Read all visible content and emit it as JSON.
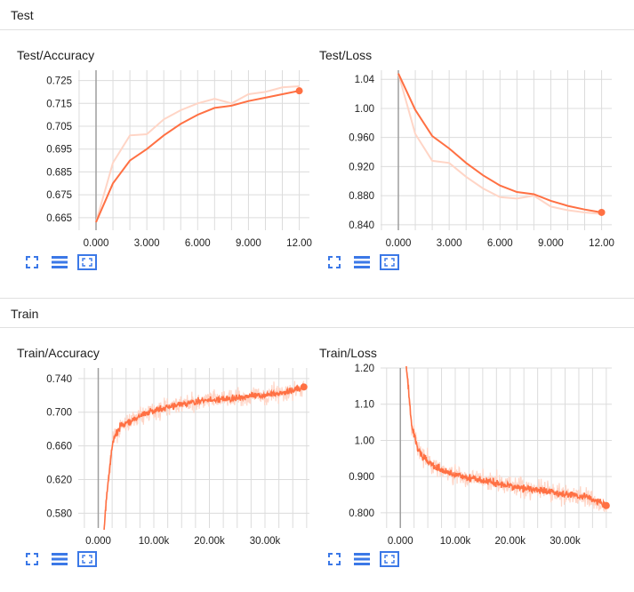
{
  "sections": [
    {
      "title": "Test"
    },
    {
      "title": "Train"
    }
  ],
  "colors": {
    "line": "#ff7043",
    "smooth_raw": "#ffd5c6",
    "grid": "#dcdcdc",
    "icon": "#3b78e7"
  },
  "toolbar_icons": [
    "fullscreen-icon",
    "data-table-icon",
    "fit-domain-icon"
  ],
  "chart_data": [
    {
      "title": "Test/Accuracy",
      "type": "line",
      "xlim": [
        -1.05,
        12.6
      ],
      "ylim": [
        0.6595,
        0.7295
      ],
      "xticks": [
        0,
        3,
        6,
        9,
        12
      ],
      "xtick_labels": [
        "0.000",
        "3.000",
        "6.000",
        "9.000",
        "12.00"
      ],
      "yticks": [
        0.665,
        0.675,
        0.685,
        0.695,
        0.705,
        0.715,
        0.725
      ],
      "ytick_labels": [
        "0.665",
        "0.675",
        "0.685",
        "0.695",
        "0.705",
        "0.715",
        "0.725"
      ],
      "series": [
        {
          "role": "smoothed",
          "x": [
            0,
            1,
            2,
            3,
            4,
            5,
            6,
            7,
            8,
            9,
            10,
            11,
            12
          ],
          "y": [
            0.663,
            0.68,
            0.69,
            0.695,
            0.701,
            0.706,
            0.71,
            0.713,
            0.714,
            0.716,
            0.7175,
            0.719,
            0.7205
          ]
        },
        {
          "role": "raw",
          "x": [
            0,
            1,
            2,
            3,
            4,
            5,
            6,
            7,
            8,
            9,
            10,
            11,
            12
          ],
          "y": [
            0.663,
            0.689,
            0.701,
            0.7015,
            0.708,
            0.712,
            0.715,
            0.717,
            0.715,
            0.719,
            0.72,
            0.722,
            0.7225
          ]
        }
      ]
    },
    {
      "title": "Test/Loss",
      "type": "line",
      "xlim": [
        -1.05,
        12.6
      ],
      "ylim": [
        0.8325,
        1.0525
      ],
      "xticks": [
        0,
        3,
        6,
        9,
        12
      ],
      "xtick_labels": [
        "0.000",
        "3.000",
        "6.000",
        "9.000",
        "12.00"
      ],
      "yticks": [
        0.84,
        0.88,
        0.92,
        0.96,
        1.0,
        1.04
      ],
      "ytick_labels": [
        "0.840",
        "0.880",
        "0.920",
        "0.960",
        "1.00",
        "1.04"
      ],
      "series": [
        {
          "role": "smoothed",
          "x": [
            0,
            1,
            2,
            3,
            4,
            5,
            6,
            7,
            8,
            9,
            10,
            11,
            12
          ],
          "y": [
            1.048,
            0.998,
            0.962,
            0.945,
            0.925,
            0.908,
            0.894,
            0.885,
            0.882,
            0.873,
            0.866,
            0.861,
            0.857
          ]
        },
        {
          "role": "raw",
          "x": [
            0,
            1,
            2,
            3,
            4,
            5,
            6,
            7,
            8,
            9,
            10,
            11,
            12
          ],
          "y": [
            1.048,
            0.965,
            0.928,
            0.925,
            0.906,
            0.89,
            0.878,
            0.876,
            0.88,
            0.865,
            0.86,
            0.857,
            0.855
          ]
        }
      ]
    },
    {
      "title": "Train/Accuracy",
      "type": "line",
      "xlim": [
        -3600,
        38000
      ],
      "ylim": [
        0.5625,
        0.7525
      ],
      "xticks": [
        0,
        10000,
        20000,
        30000
      ],
      "xtick_labels": [
        "0.000",
        "10.00k",
        "20.00k",
        "30.00k"
      ],
      "yticks": [
        0.58,
        0.62,
        0.66,
        0.7,
        0.74
      ],
      "ytick_labels": [
        "0.580",
        "0.620",
        "0.660",
        "0.700",
        "0.740"
      ],
      "series": [
        {
          "role": "smoothed_trend",
          "x": [
            1000,
            1500,
            2000,
            2500,
            3000,
            4000,
            6000,
            8000,
            10000,
            14000,
            18000,
            22000,
            26000,
            30000,
            34000,
            37000
          ],
          "y": [
            0.555,
            0.6,
            0.63,
            0.66,
            0.672,
            0.683,
            0.69,
            0.697,
            0.702,
            0.708,
            0.713,
            0.715,
            0.718,
            0.72,
            0.724,
            0.73
          ]
        }
      ]
    },
    {
      "title": "Train/Loss",
      "type": "line",
      "xlim": [
        -3600,
        38500
      ],
      "ylim": [
        0.758,
        1.2
      ],
      "xticks": [
        0,
        10000,
        20000,
        30000
      ],
      "xtick_labels": [
        "0.000",
        "10.00k",
        "20.00k",
        "30.00k"
      ],
      "yticks": [
        0.8,
        0.9,
        1.0,
        1.1,
        1.2
      ],
      "ytick_labels": [
        "0.800",
        "0.900",
        "1.00",
        "1.10",
        "1.20"
      ],
      "series": [
        {
          "role": "smoothed_trend",
          "x": [
            1000,
            1500,
            2000,
            3000,
            4000,
            6000,
            8000,
            10000,
            14000,
            18000,
            22000,
            26000,
            30000,
            34000,
            37500
          ],
          "y": [
            1.22,
            1.14,
            1.05,
            0.985,
            0.955,
            0.93,
            0.915,
            0.905,
            0.892,
            0.88,
            0.87,
            0.86,
            0.852,
            0.843,
            0.82
          ]
        }
      ]
    }
  ]
}
